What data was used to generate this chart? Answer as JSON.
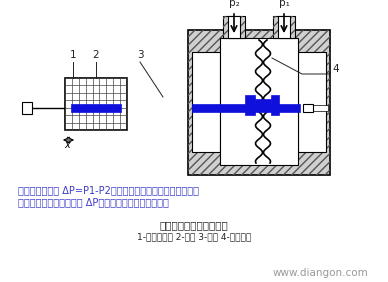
{
  "bg_color": "#ffffff",
  "text_color_blue": "#3a3acc",
  "text_color_black": "#222222",
  "blue_color": "#1010dd",
  "caption_line1": "电感式压力传感器结构图",
  "caption_line2": "1-差动变压器 2-铁芯 3-连杆 4-中间膜片",
  "description_line1": "中间膜片在压差 ΔP=P1-P2的作用下产生位移，通过连杆带动",
  "description_line2": "铁芯运动，从而将压力差 ΔP转换成变压器的电压输出。",
  "watermark": "www.diangon.com",
  "label1": "1",
  "label2": "2",
  "label3": "3",
  "label4": "4",
  "p2_label": "p₂",
  "p1_label": "p₁",
  "x_label": "x"
}
